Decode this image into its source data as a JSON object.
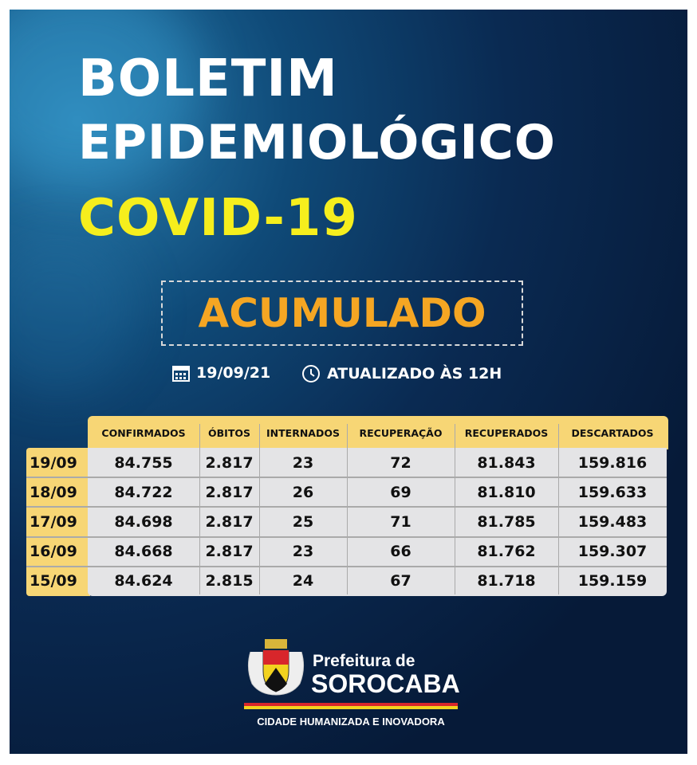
{
  "title": {
    "line1": "BOLETIM",
    "line2": "EPIDEMIOLÓGICO",
    "line3": "COVID-19"
  },
  "badge": "ACUMULADO",
  "meta": {
    "date": "19/09/21",
    "date_icon": "calendar-icon",
    "updated": "ATUALIZADO ÀS 12H",
    "updated_icon": "clock-icon"
  },
  "table": {
    "columns": [
      "CONFIRMADOS",
      "ÓBITOS",
      "INTERNADOS",
      "RECUPERAÇÃO",
      "RECUPERADOS",
      "DESCARTADOS"
    ],
    "rows": [
      {
        "date": "19/09",
        "values": [
          "84.755",
          "2.817",
          "23",
          "72",
          "81.843",
          "159.816"
        ]
      },
      {
        "date": "18/09",
        "values": [
          "84.722",
          "2.817",
          "26",
          "69",
          "81.810",
          "159.633"
        ]
      },
      {
        "date": "17/09",
        "values": [
          "84.698",
          "2.817",
          "25",
          "71",
          "81.785",
          "159.483"
        ]
      },
      {
        "date": "16/09",
        "values": [
          "84.668",
          "2.817",
          "23",
          "66",
          "81.762",
          "159.307"
        ]
      },
      {
        "date": "15/09",
        "values": [
          "84.624",
          "2.815",
          "24",
          "67",
          "81.718",
          "159.159"
        ]
      }
    ]
  },
  "footer": {
    "org_line1": "Prefeitura de",
    "org_line2": "SOROCABA",
    "slogan": "CIDADE HUMANIZADA E INOVADORA"
  },
  "colors": {
    "title": "#ffffff",
    "covid": "#f6ee1d",
    "badge": "#f5a623",
    "table_header": "#f7d675",
    "table_body": "#e4e4e6",
    "background": "#0a2a52"
  }
}
